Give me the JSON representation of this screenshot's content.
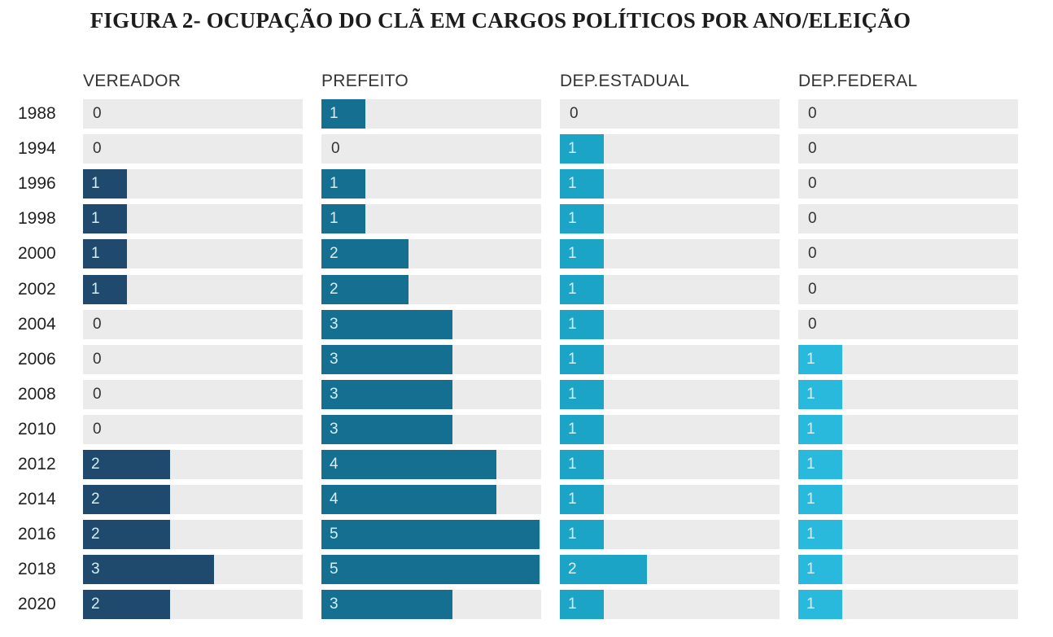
{
  "title": "FIGURA 2- OCUPAÇÃO DO CLÃ EM CARGOS POLÍTICOS POR ANO/ELEIÇÃO",
  "colors": {
    "track": "#ebebeb",
    "vereador": "#1f4a6e",
    "prefeito": "#156f90",
    "dep_estadual": "#1ca4c6",
    "dep_federal": "#29b9dc",
    "zero_label": "#333333",
    "bar_label": "#d6eef6"
  },
  "chart_data": {
    "type": "bar",
    "orientation": "horizontal",
    "layout": "small-multiples",
    "title": "FIGURA 2- OCUPAÇÃO DO CLÃ EM CARGOS POLÍTICOS POR ANO/ELEIÇÃO",
    "categories": [
      "1988",
      "1994",
      "1996",
      "1998",
      "2000",
      "2002",
      "2004",
      "2006",
      "2008",
      "2010",
      "2012",
      "2014",
      "2016",
      "2018",
      "2020"
    ],
    "xlim": [
      0,
      5
    ],
    "series": [
      {
        "name": "VEREADOR",
        "key": "vereador",
        "values": [
          0,
          0,
          1,
          1,
          1,
          1,
          0,
          0,
          0,
          0,
          2,
          2,
          2,
          3,
          2
        ]
      },
      {
        "name": "PREFEITO",
        "key": "prefeito",
        "values": [
          1,
          0,
          1,
          1,
          2,
          2,
          3,
          3,
          3,
          3,
          4,
          4,
          5,
          5,
          3
        ]
      },
      {
        "name": "DEP.ESTADUAL",
        "key": "dep_estadual",
        "values": [
          0,
          1,
          1,
          1,
          1,
          1,
          1,
          1,
          1,
          1,
          1,
          1,
          1,
          2,
          1
        ]
      },
      {
        "name": "DEP.FEDERAL",
        "key": "dep_federal",
        "values": [
          0,
          0,
          0,
          0,
          0,
          0,
          0,
          1,
          1,
          1,
          1,
          1,
          1,
          1,
          1
        ]
      }
    ]
  }
}
